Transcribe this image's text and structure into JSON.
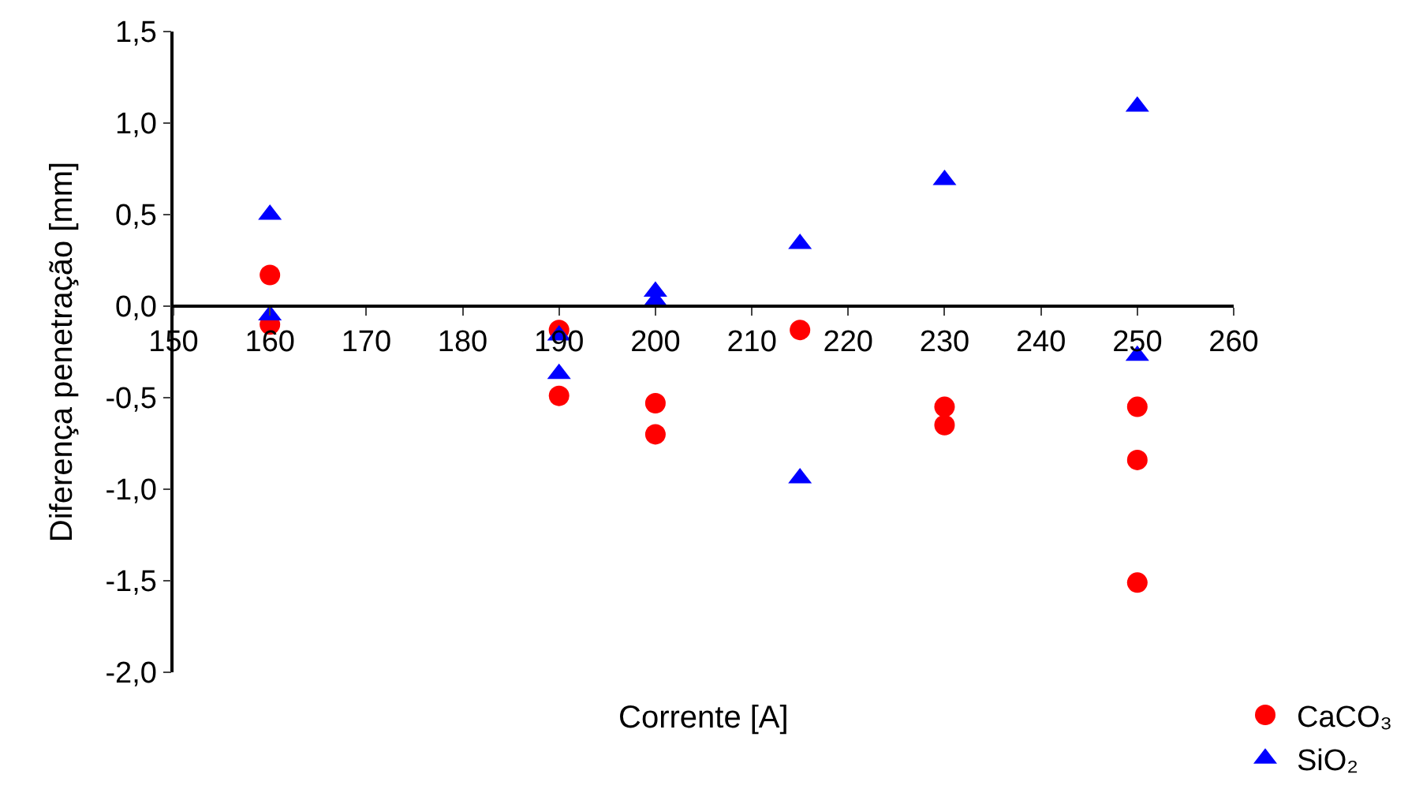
{
  "chart_data": {
    "type": "scatter",
    "xlabel": "Corrente [A]",
    "ylabel": "Diferença penetração [mm]",
    "xlim": [
      150,
      260
    ],
    "xticks": [
      150,
      160,
      170,
      180,
      190,
      200,
      210,
      220,
      230,
      240,
      250,
      260
    ],
    "ylim": [
      -2.0,
      1.5
    ],
    "yticks": [
      {
        "value": -2.0,
        "label": "-2,0"
      },
      {
        "value": -1.5,
        "label": "-1,5"
      },
      {
        "value": -1.0,
        "label": "-1,0"
      },
      {
        "value": -0.5,
        "label": "-0,5"
      },
      {
        "value": 0.0,
        "label": "0,0"
      },
      {
        "value": 0.5,
        "label": "0,5"
      },
      {
        "value": 1.0,
        "label": "1,0"
      },
      {
        "value": 1.5,
        "label": "1,5"
      }
    ],
    "legend": "bottom right",
    "series": [
      {
        "name": "CaCO₃",
        "color": "#ff0000",
        "marker": "circle",
        "x": [
          160,
          160,
          190,
          190,
          200,
          200,
          215,
          230,
          230,
          250,
          250,
          250
        ],
        "values": [
          0.17,
          -0.1,
          -0.13,
          -0.49,
          -0.53,
          -0.7,
          -0.13,
          -0.55,
          -0.65,
          -0.55,
          -0.84,
          -1.51
        ]
      },
      {
        "name": "SiO₂",
        "color": "#0000ff",
        "marker": "triangle",
        "x": [
          160,
          160,
          190,
          190,
          200,
          200,
          215,
          215,
          230,
          250,
          250
        ],
        "values": [
          0.5,
          -0.05,
          -0.16,
          -0.37,
          0.08,
          0.03,
          0.34,
          -0.94,
          0.69,
          1.09,
          -0.27
        ]
      }
    ]
  }
}
